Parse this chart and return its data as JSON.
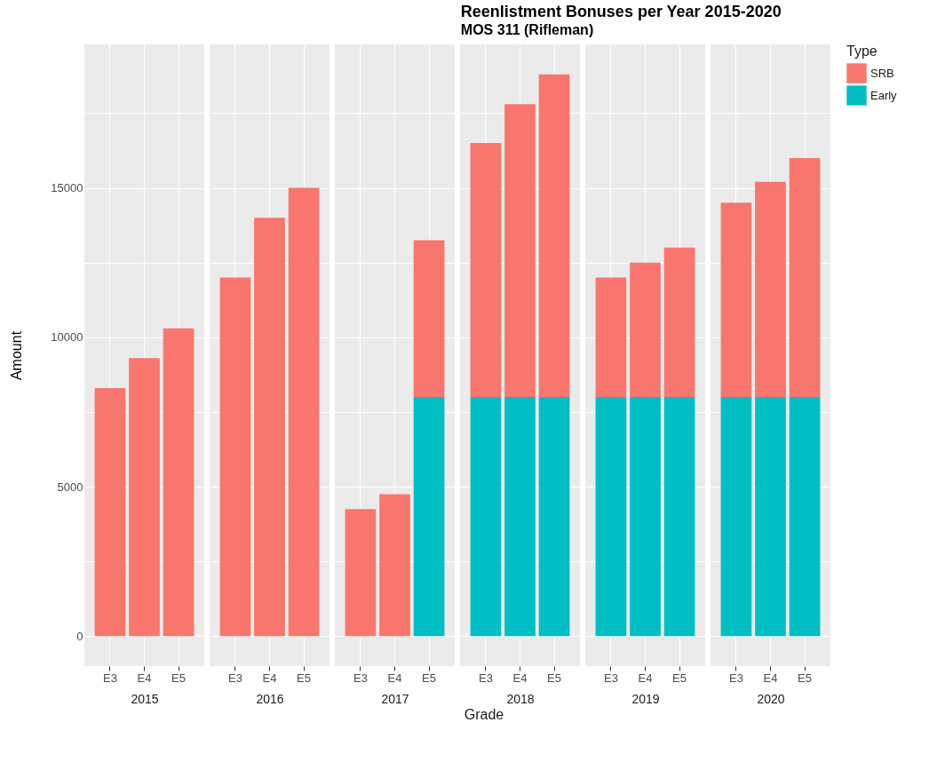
{
  "chart_data": [
    {
      "type": "bar",
      "ylabel": "Amount",
      "xlabel": "2015",
      "categories": [
        "E3",
        "E4",
        "E5"
      ],
      "stacked": true,
      "ylim": [
        -1000,
        19800
      ],
      "yticks": [
        0,
        {
          "value": 2500,
          "label": null
        },
        5000,
        {
          "value": 7500,
          "label": null
        },
        10000,
        {
          "value": 12500,
          "label": null
        },
        15000,
        {
          "value": 17500,
          "label": null
        }
      ],
      "grid": true,
      "legend": false,
      "series": [
        {
          "color": "#00bfc4",
          "values": [
            null,
            null,
            null
          ]
        },
        {
          "color": "#f8766d",
          "values": [
            8300,
            9300,
            10300
          ]
        }
      ]
    },
    {
      "type": "bar",
      "xlabel": "2016",
      "categories": [
        "E3",
        "E4",
        "E5"
      ],
      "stacked": true,
      "ylim": [
        -1000,
        19800
      ],
      "yticks": [
        0,
        {
          "value": 2500,
          "label": null
        },
        5000,
        {
          "value": 7500,
          "label": null
        },
        10000,
        {
          "value": 12500,
          "label": null
        },
        15000,
        {
          "value": 17500,
          "label": null
        }
      ],
      "grid": true,
      "legend": false,
      "tick_labels": "x",
      "series": [
        {
          "color": "#00bfc4",
          "values": [
            null,
            null,
            null
          ]
        },
        {
          "color": "#f8766d",
          "values": [
            12000,
            14000,
            15000
          ]
        }
      ]
    },
    {
      "type": "bar",
      "xlabel": "2017",
      "categories": [
        "E3",
        "E4",
        "E5"
      ],
      "stacked": true,
      "ylim": [
        -1000,
        19800
      ],
      "yticks": [
        0,
        {
          "value": 2500,
          "label": null
        },
        5000,
        {
          "value": 7500,
          "label": null
        },
        10000,
        {
          "value": 12500,
          "label": null
        },
        15000,
        {
          "value": 17500,
          "label": null
        }
      ],
      "grid": true,
      "legend": false,
      "tick_labels": "x",
      "series": [
        {
          "color": "#00bfc4",
          "values": [
            null,
            null,
            8000
          ]
        },
        {
          "color": "#f8766d",
          "values": [
            4250,
            4750,
            5250
          ]
        }
      ]
    },
    {
      "type": "bar",
      "title": "Reenlistment Bonuses per Year 2015-2020",
      "subtitle": "MOS 311 (Rifleman)",
      "xlabel": "2018",
      "annotations": [
        "Grade"
      ],
      "categories": [
        "E3",
        "E4",
        "E5"
      ],
      "stacked": true,
      "ylim": [
        -1000,
        19800
      ],
      "yticks": [
        0,
        {
          "value": 2500,
          "label": null
        },
        5000,
        {
          "value": 7500,
          "label": null
        },
        10000,
        {
          "value": 12500,
          "label": null
        },
        15000,
        {
          "value": 17500,
          "label": null
        }
      ],
      "grid": true,
      "legend": false,
      "tick_labels": "x",
      "series": [
        {
          "color": "#00bfc4",
          "values": [
            8000,
            8000,
            8000
          ]
        },
        {
          "color": "#f8766d",
          "values": [
            8500,
            9800,
            10800
          ]
        }
      ]
    },
    {
      "type": "bar",
      "xlabel": "2019",
      "categories": [
        "E3",
        "E4",
        "E5"
      ],
      "stacked": true,
      "ylim": [
        -1000,
        19800
      ],
      "yticks": [
        0,
        {
          "value": 2500,
          "label": null
        },
        5000,
        {
          "value": 7500,
          "label": null
        },
        10000,
        {
          "value": 12500,
          "label": null
        },
        15000,
        {
          "value": 17500,
          "label": null
        }
      ],
      "grid": true,
      "legend": false,
      "tick_labels": "x",
      "series": [
        {
          "color": "#00bfc4",
          "values": [
            8000,
            8000,
            8000
          ]
        },
        {
          "color": "#f8766d",
          "values": [
            4000,
            4500,
            5000
          ]
        }
      ]
    },
    {
      "type": "bar",
      "xlabel": "2020",
      "categories": [
        "E3",
        "E4",
        "E5"
      ],
      "stacked": true,
      "ylim": [
        -1000,
        19800
      ],
      "yticks": [
        0,
        {
          "value": 2500,
          "label": null
        },
        5000,
        {
          "value": 7500,
          "label": null
        },
        10000,
        {
          "value": 12500,
          "label": null
        },
        15000,
        {
          "value": 17500,
          "label": null
        }
      ],
      "grid": true,
      "legend": "right",
      "legend_title": "Type",
      "tick_labels": "x",
      "series": [
        {
          "name": "Early",
          "color": "#00bfc4",
          "values": [
            8000,
            8000,
            8000
          ]
        },
        {
          "name": "SRB",
          "color": "#f8766d",
          "values": [
            6500,
            7200,
            8000
          ]
        }
      ]
    }
  ]
}
